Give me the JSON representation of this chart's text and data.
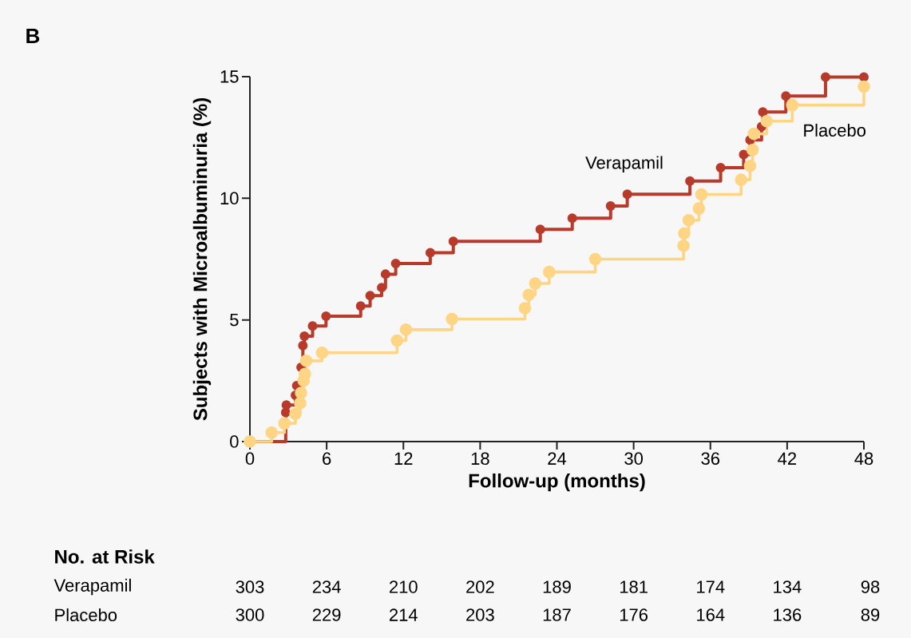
{
  "chart_data": {
    "type": "step",
    "title": "B",
    "xlabel": "Follow-up (months)",
    "ylabel": "Subjects with Microalbuminuria (%)",
    "xlim": [
      0,
      48
    ],
    "xticks": [
      0,
      6,
      12,
      18,
      24,
      30,
      36,
      42,
      48
    ],
    "ylim": [
      0,
      15
    ],
    "yticks": [
      0,
      5,
      10,
      15
    ],
    "marker": "circle",
    "series": [
      {
        "name": "Verapamil",
        "color": "#b83a2a",
        "x": [
          0,
          2.8,
          2.85,
          3.56,
          3.66,
          4.0,
          4.14,
          4.26,
          4.9,
          5.95,
          8.66,
          9.4,
          10.3,
          10.6,
          11.4,
          14.1,
          15.9,
          22.7,
          25.2,
          28.2,
          29.5,
          34.4,
          36.8,
          38.6,
          39.1,
          40.0,
          40.1,
          41.9,
          45.0,
          48
        ],
        "values": [
          0,
          1.2,
          1.5,
          1.9,
          2.3,
          3.05,
          3.95,
          4.33,
          4.75,
          5.15,
          5.57,
          6.0,
          6.33,
          6.88,
          7.32,
          7.76,
          8.23,
          8.72,
          9.18,
          9.68,
          10.17,
          10.71,
          11.26,
          11.8,
          12.4,
          12.95,
          13.55,
          14.2,
          14.98,
          14.98
        ]
      },
      {
        "name": "Placebo",
        "color": "#fdd584",
        "x": [
          0,
          1.7,
          2.7,
          3.56,
          3.93,
          4.0,
          4.2,
          4.3,
          4.4,
          5.64,
          11.5,
          12.2,
          15.8,
          21.5,
          21.8,
          22.3,
          23.4,
          27.0,
          33.9,
          33.95,
          34.3,
          35.1,
          35.3,
          38.4,
          39.1,
          39.3,
          39.4,
          40.4,
          42.4,
          48
        ],
        "values": [
          0,
          0.37,
          0.75,
          1.14,
          1.58,
          2.0,
          2.5,
          2.78,
          3.32,
          3.65,
          4.15,
          4.6,
          5.04,
          5.48,
          6.03,
          6.5,
          6.97,
          7.5,
          8.05,
          8.56,
          9.1,
          9.58,
          10.16,
          10.76,
          11.33,
          11.99,
          12.65,
          13.17,
          13.83,
          14.59
        ]
      }
    ],
    "annotations": [
      "No. at Risk",
      "303",
      "234",
      "210",
      "202",
      "189",
      "181",
      "174",
      "134",
      "98",
      "300",
      "229",
      "214",
      "203",
      "187",
      "176",
      "164",
      "136",
      "89"
    ]
  }
}
